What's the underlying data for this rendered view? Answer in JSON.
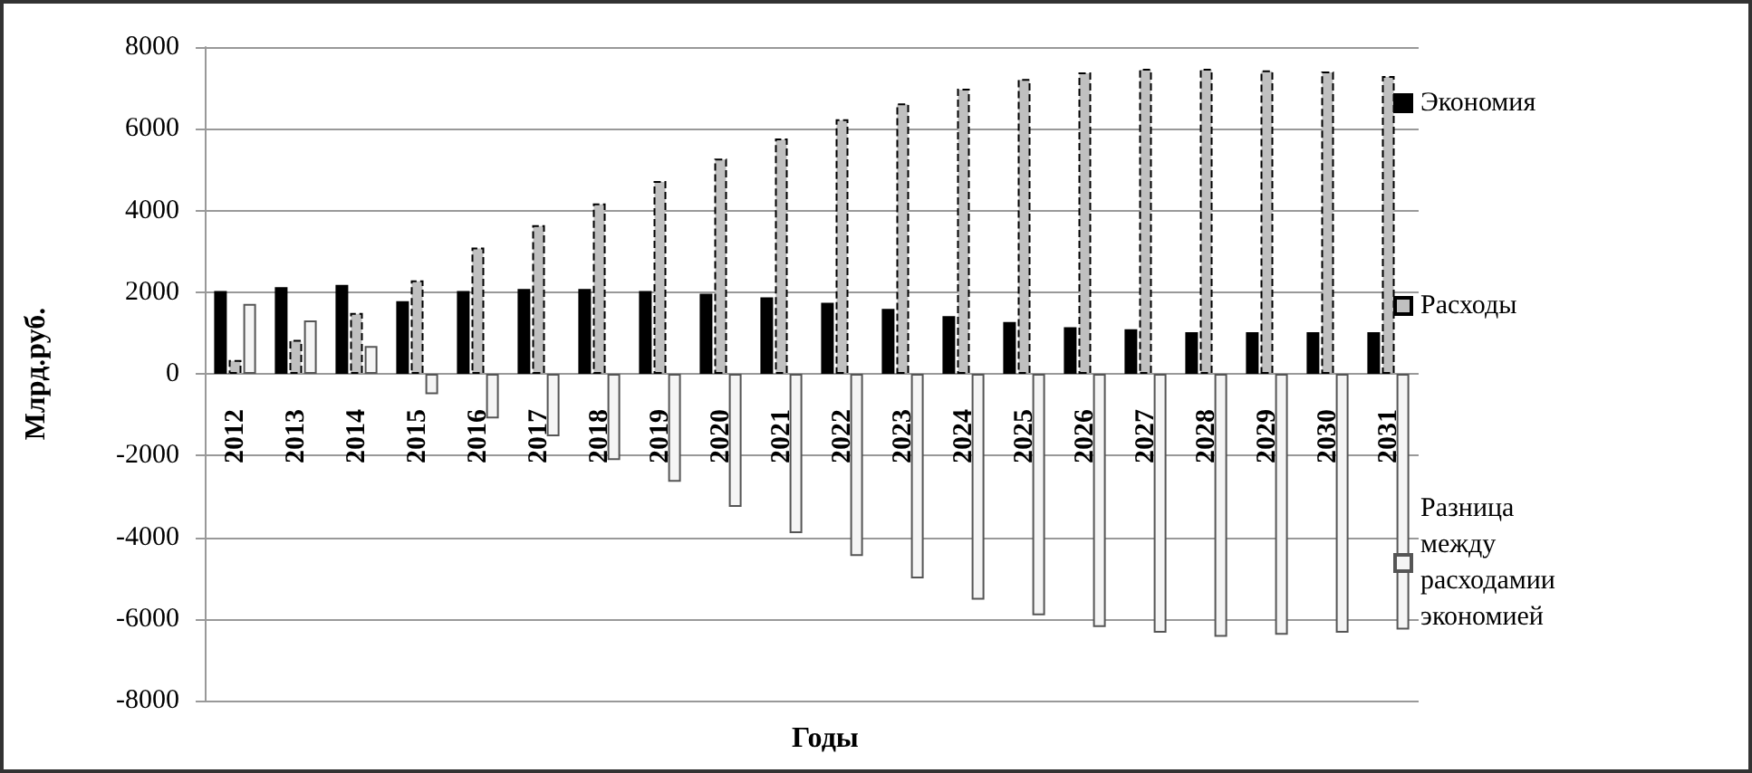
{
  "chart_data": {
    "type": "bar",
    "xlabel": "Годы",
    "ylabel": "Млрд.руб.",
    "categories": [
      "2012",
      "2013",
      "2014",
      "2015",
      "2016",
      "2017",
      "2018",
      "2019",
      "2020",
      "2021",
      "2022",
      "2023",
      "2024",
      "2025",
      "2026",
      "2027",
      "2028",
      "2029",
      "2030",
      "2031"
    ],
    "series": [
      {
        "name": "Экономия",
        "color": "#000000",
        "values": [
          2030,
          2120,
          2180,
          1780,
          2030,
          2080,
          2080,
          2030,
          1960,
          1870,
          1740,
          1590,
          1410,
          1270,
          1140,
          1090,
          1020,
          1020,
          1020,
          1020
        ]
      },
      {
        "name": "Расходы",
        "color": "#c0c0c0",
        "values": [
          340,
          830,
          1490,
          2290,
          3090,
          3640,
          4170,
          4720,
          5270,
          5760,
          6230,
          6620,
          6980,
          7220,
          7380,
          7470,
          7470,
          7430,
          7400,
          7290
        ]
      },
      {
        "name": "Разница между расходамии экономией",
        "color": "#f5f5f5",
        "values": [
          1710,
          1310,
          680,
          -500,
          -1090,
          -1530,
          -2110,
          -2640,
          -3260,
          -3900,
          -4460,
          -5010,
          -5530,
          -5910,
          -6200,
          -6340,
          -6440,
          -6390,
          -6340,
          -6260
        ]
      }
    ],
    "ylim": [
      -8000,
      8000
    ],
    "yticks": [
      -8000,
      -6000,
      -4000,
      -2000,
      0,
      2000,
      4000,
      6000,
      8000
    ],
    "grid": "y",
    "legend": "right"
  }
}
